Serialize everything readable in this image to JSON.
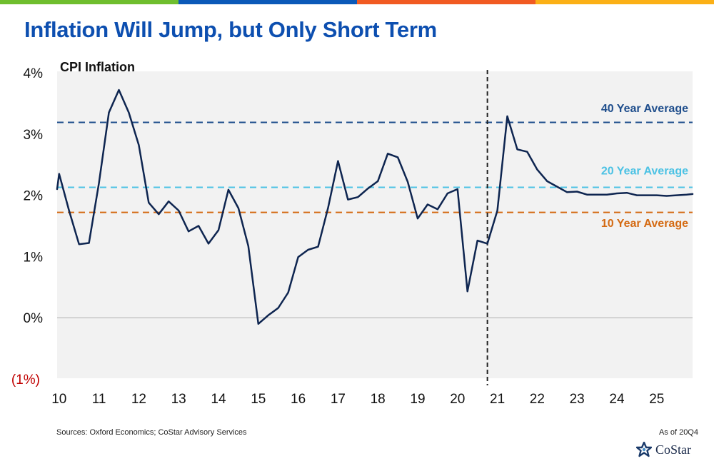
{
  "header": {
    "title": "Inflation Will Jump, but Only Short Term",
    "bar_colors": [
      "#6fbe2e",
      "#0b59b8",
      "#f15a22",
      "#fbb016"
    ]
  },
  "chart_data": {
    "type": "line",
    "title": "CPI Inflation",
    "y_ticks": [
      "4%",
      "3%",
      "2%",
      "1%",
      "0%",
      "(1%)"
    ],
    "y_tick_values": [
      4,
      3,
      2,
      1,
      0,
      -1
    ],
    "negative_tick_color": "#c00000",
    "ylim": [
      -1,
      4
    ],
    "x_tick_labels": [
      "10",
      "11",
      "12",
      "13",
      "14",
      "15",
      "16",
      "17",
      "18",
      "19",
      "20",
      "21",
      "22",
      "23",
      "24",
      "25"
    ],
    "x_tick_values": [
      2010,
      2011,
      2012,
      2013,
      2014,
      2015,
      2016,
      2017,
      2018,
      2019,
      2020,
      2021,
      2022,
      2023,
      2024,
      2025
    ],
    "xlim": [
      2009.95,
      2025.9
    ],
    "forecast_divider_x": 2020.75,
    "grid": false,
    "series": [
      {
        "color": "#0e2550",
        "x": [
          2009.95,
          2010.0,
          2010.25,
          2010.5,
          2010.75,
          2011.0,
          2011.25,
          2011.5,
          2011.75,
          2012.0,
          2012.25,
          2012.5,
          2012.75,
          2013.0,
          2013.25,
          2013.5,
          2013.75,
          2014.0,
          2014.25,
          2014.5,
          2014.75,
          2015.0,
          2015.25,
          2015.5,
          2015.75,
          2016.0,
          2016.25,
          2016.5,
          2016.75,
          2017.0,
          2017.25,
          2017.5,
          2017.75,
          2018.0,
          2018.25,
          2018.5,
          2018.75,
          2019.0,
          2019.25,
          2019.5,
          2019.75,
          2020.0,
          2020.25,
          2020.5,
          2020.75,
          2021.0,
          2021.25,
          2021.5,
          2021.75,
          2022.0,
          2022.25,
          2022.5,
          2022.75,
          2023.0,
          2023.25,
          2023.5,
          2023.75,
          2024.0,
          2024.25,
          2024.5,
          2024.75,
          2025.0,
          2025.25,
          2025.5,
          2025.75,
          2025.9
        ],
        "values": [
          2.1,
          2.35,
          1.75,
          1.2,
          1.22,
          2.2,
          3.35,
          3.72,
          3.35,
          2.82,
          1.88,
          1.69,
          1.9,
          1.75,
          1.41,
          1.5,
          1.21,
          1.43,
          2.09,
          1.79,
          1.17,
          -0.1,
          0.04,
          0.16,
          0.41,
          0.99,
          1.11,
          1.16,
          1.79,
          2.56,
          1.93,
          1.97,
          2.11,
          2.23,
          2.68,
          2.62,
          2.22,
          1.62,
          1.85,
          1.77,
          2.03,
          2.1,
          0.43,
          1.26,
          1.21,
          1.75,
          3.29,
          2.75,
          2.71,
          2.42,
          2.23,
          2.14,
          2.05,
          2.06,
          2.01,
          2.01,
          2.01,
          2.03,
          2.04,
          2.0,
          2.0,
          2.0,
          1.99,
          2.0,
          2.01,
          2.02
        ]
      }
    ],
    "reference_lines": [
      {
        "label": "40 Year Average",
        "value": 3.19,
        "color": "#1f4e8c",
        "label_value": 3.43
      },
      {
        "label": "20 Year Average",
        "value": 2.13,
        "color": "#4cc2e4",
        "label_value": 2.41
      },
      {
        "label": "10 Year Average",
        "value": 1.72,
        "color": "#d46a12",
        "label_value": 1.55
      }
    ],
    "plot_background": "#f2f2f2"
  },
  "footer": {
    "sources": "Sources: Oxford Economics; CoStar Advisory Services",
    "as_of": "As of 20Q4"
  },
  "logo": {
    "text": "CoStar"
  }
}
